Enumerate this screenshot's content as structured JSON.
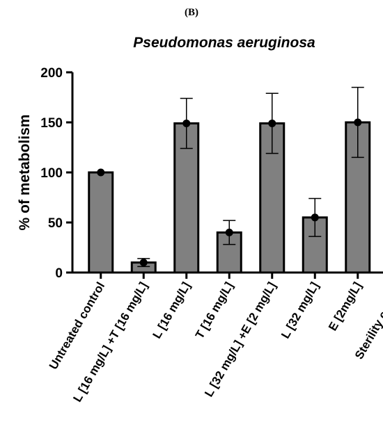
{
  "panel_label": "(B)",
  "chart_data": {
    "type": "bar",
    "title": "Pseudomonas aeruginosa",
    "xlabel": "",
    "ylabel": "% of metabolism",
    "ylim": [
      0,
      200
    ],
    "yticks": [
      0,
      50,
      100,
      150,
      200
    ],
    "grid": false,
    "categories": [
      "Untreated control",
      "L [16 mg/L] +T [16 mg/L]",
      "L [16 mg/L]",
      "T [16 mg/L]",
      "L [32 mg/L] +E [2 mg/L]",
      "L [32 mg/L]",
      "E [2mg/L]",
      "Sterility control"
    ],
    "values": [
      100,
      10,
      149,
      40,
      149,
      55,
      150,
      0
    ],
    "error_upper": [
      0,
      4,
      25,
      12,
      30,
      19,
      35,
      0
    ],
    "error_lower": [
      0,
      4,
      25,
      12,
      30,
      19,
      35,
      0
    ],
    "bar_color": "#808080",
    "edge_color": "#000000"
  }
}
